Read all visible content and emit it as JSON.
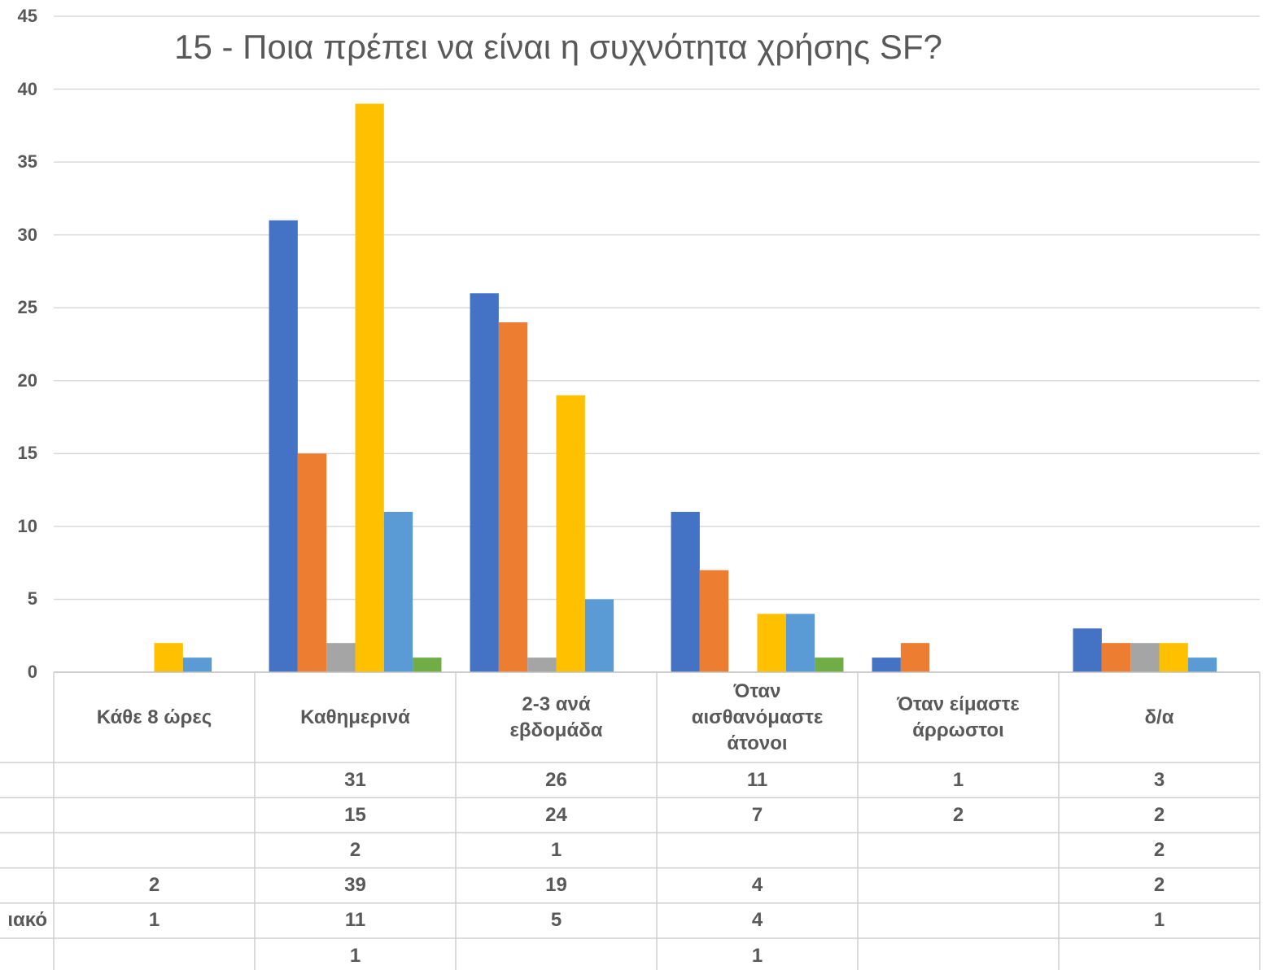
{
  "chart_data": {
    "type": "bar",
    "title": "15 - Ποια πρέπει να είναι η συχνότητα χρήσης SF?",
    "categories": [
      "Κάθε 8 ώρες",
      "Καθημερινά",
      "2-3 ανά εβδομάδα",
      "Όταν αισθανόμαστε άτονοι",
      "Όταν είμαστε άρρωστοι",
      "δ/α"
    ],
    "ylim": [
      0,
      45
    ],
    "yticks": [
      0,
      5,
      10,
      15,
      20,
      25,
      30,
      35,
      40,
      45
    ],
    "grid": true,
    "data_table": true,
    "series": [
      {
        "color": "#4472C4",
        "values": [
          null,
          31,
          26,
          11,
          1,
          3
        ]
      },
      {
        "color": "#ED7D31",
        "values": [
          null,
          15,
          24,
          7,
          2,
          2
        ]
      },
      {
        "color": "#A5A5A5",
        "values": [
          null,
          2,
          1,
          null,
          null,
          2
        ]
      },
      {
        "color": "#FFC000",
        "values": [
          2,
          39,
          19,
          4,
          null,
          2
        ]
      },
      {
        "name": "ιακό",
        "color": "#5B9BD5",
        "values": [
          1,
          11,
          5,
          4,
          null,
          1
        ]
      },
      {
        "color": "#70AD47",
        "values": [
          null,
          1,
          null,
          1,
          null,
          null
        ]
      }
    ]
  }
}
